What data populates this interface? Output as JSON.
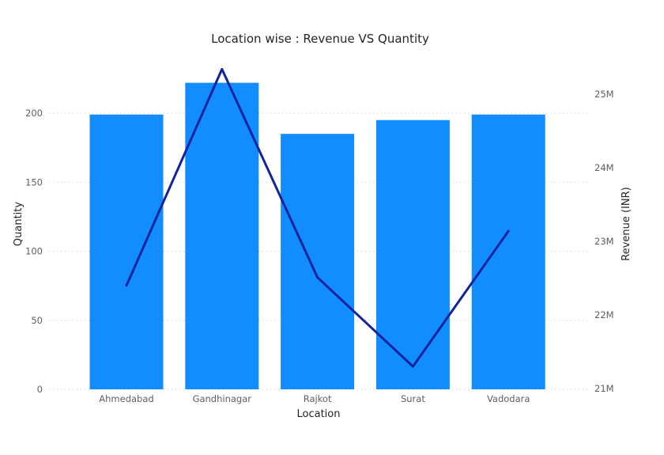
{
  "chart_data": {
    "type": "bar",
    "title": "Location wise : Revenue VS Quantity",
    "xlabel": "Location",
    "ylabel": "Quantity",
    "y2label": "Revenue (INR)",
    "categories": [
      "Ahmedabad",
      "Gandhinagar",
      "Rajkot",
      "Surat",
      "Vadodara"
    ],
    "series": [
      {
        "name": "Quantity",
        "type": "bar",
        "axis": "left",
        "color": "#118dff",
        "values": [
          199,
          222,
          185,
          195,
          199
        ]
      },
      {
        "name": "Revenue",
        "type": "line",
        "axis": "right",
        "color": "#12239e",
        "values": [
          22400000,
          25340000,
          22510000,
          21300000,
          23140000
        ]
      }
    ],
    "ylim": [
      0,
      240
    ],
    "yticks": [
      0,
      50,
      100,
      150,
      200
    ],
    "ytick_labels": [
      "0",
      "50",
      "100",
      "150",
      "200"
    ],
    "y2lim": [
      21000000,
      25250000
    ],
    "y2ticks": [
      21000000,
      22000000,
      23000000,
      24000000,
      25000000
    ],
    "y2tick_labels": [
      "21M",
      "22M",
      "23M",
      "24M",
      "25M"
    ],
    "grid": true
  }
}
